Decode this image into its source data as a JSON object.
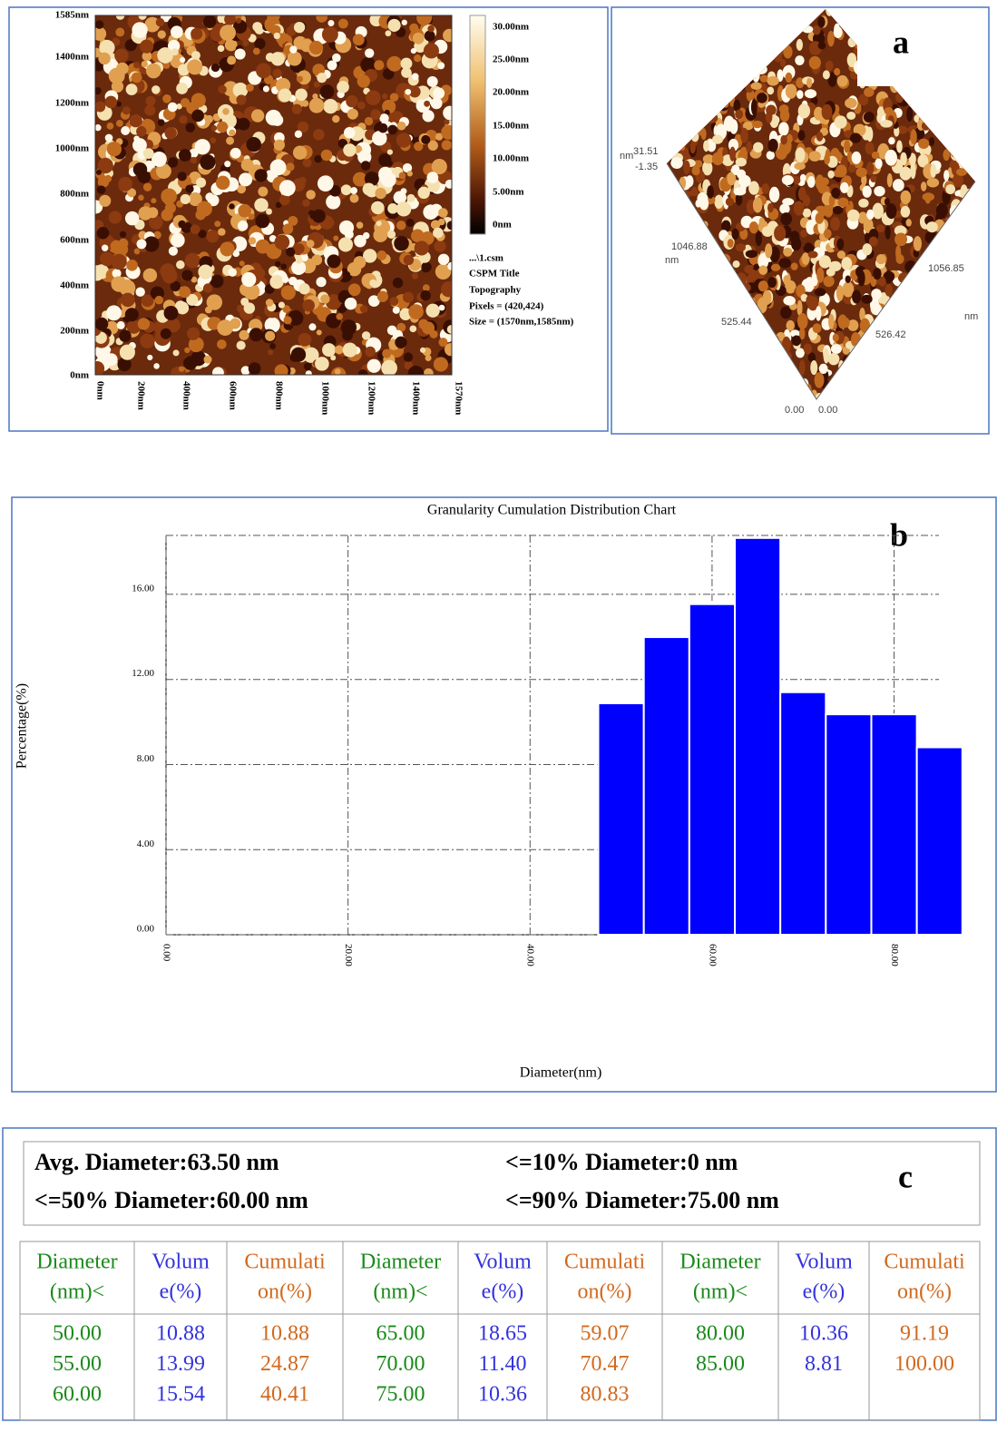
{
  "panel_a": {
    "label": "a",
    "map": {
      "y_ticks": [
        "1585nm",
        "1400nm",
        "1200nm",
        "1000nm",
        "800nm",
        "600nm",
        "400nm",
        "200nm",
        "0nm"
      ],
      "x_ticks": [
        "0nm",
        "200nm",
        "400nm",
        "600nm",
        "800nm",
        "1000nm",
        "1200nm",
        "1400nm",
        "1570nm"
      ],
      "colorbar_ticks": [
        "30.00nm",
        "25.00nm",
        "20.00nm",
        "15.00nm",
        "10.00nm",
        "5.00nm",
        "0nm"
      ],
      "info": [
        "...\\1.csm",
        "CSPM Title",
        "Topography",
        "Pixels = (420,424)",
        "Size = (1570nm,1585nm)"
      ]
    },
    "surface": {
      "labels": [
        "nm",
        "31.51",
        "-1.35",
        "nm",
        "1046.88",
        "1056.85",
        "nm",
        "525.44",
        "526.42",
        "0.00",
        "0.00"
      ]
    }
  },
  "chart_data": {
    "type": "histogram",
    "title": "Granularity Cumulation Distribution  Chart",
    "panel_label": "b",
    "xlabel": "Diameter(nm)",
    "ylabel": "Percentage(%)",
    "bins": [
      47.5,
      52.5,
      57.5,
      62.5,
      67.5,
      72.5,
      77.5,
      82.5,
      87.5
    ],
    "values": [
      10.88,
      13.99,
      15.54,
      18.65,
      11.4,
      10.36,
      10.36,
      8.81
    ],
    "color": "#0000ff",
    "xlim": [
      0,
      87.5
    ],
    "ylim": [
      0,
      18.77
    ],
    "xticks": [
      {
        "value": 0,
        "label": "0.00"
      },
      {
        "value": 20,
        "label": "20.00"
      },
      {
        "value": 40,
        "label": "40.00"
      },
      {
        "value": 60,
        "label": "60.00"
      },
      {
        "value": 80,
        "label": "80.00"
      }
    ],
    "yticks": [
      {
        "value": 0,
        "label": "0.00"
      },
      {
        "value": 4,
        "label": "4.00"
      },
      {
        "value": 8,
        "label": "8.00"
      },
      {
        "value": 12,
        "label": "12.00"
      },
      {
        "value": 16,
        "label": "16.00"
      }
    ],
    "grid": true
  },
  "table": {
    "label": "c",
    "summary": [
      "Avg. Diameter:63.50 nm",
      "<=50% Diameter:60.00 nm",
      "<=10% Diameter:0 nm",
      "<=90% Diameter:75.00 nm"
    ],
    "headers": [
      [
        "Diameter",
        "(nm)<"
      ],
      [
        "Volum",
        "e(%)"
      ],
      [
        "Cumulati",
        "on(%)"
      ]
    ],
    "groups": [
      {
        "diameter": [
          "50.00",
          "55.00",
          "60.00"
        ],
        "volume": [
          "10.88",
          "13.99",
          "15.54"
        ],
        "cumulation": [
          "10.88",
          "24.87",
          "40.41"
        ]
      },
      {
        "diameter": [
          "65.00",
          "70.00",
          "75.00"
        ],
        "volume": [
          "18.65",
          "11.40",
          "10.36"
        ],
        "cumulation": [
          "59.07",
          "70.47",
          "80.83"
        ]
      },
      {
        "diameter": [
          "80.00",
          "85.00"
        ],
        "volume": [
          "10.36",
          "8.81"
        ],
        "cumulation": [
          "91.19",
          "100.00"
        ]
      }
    ]
  }
}
